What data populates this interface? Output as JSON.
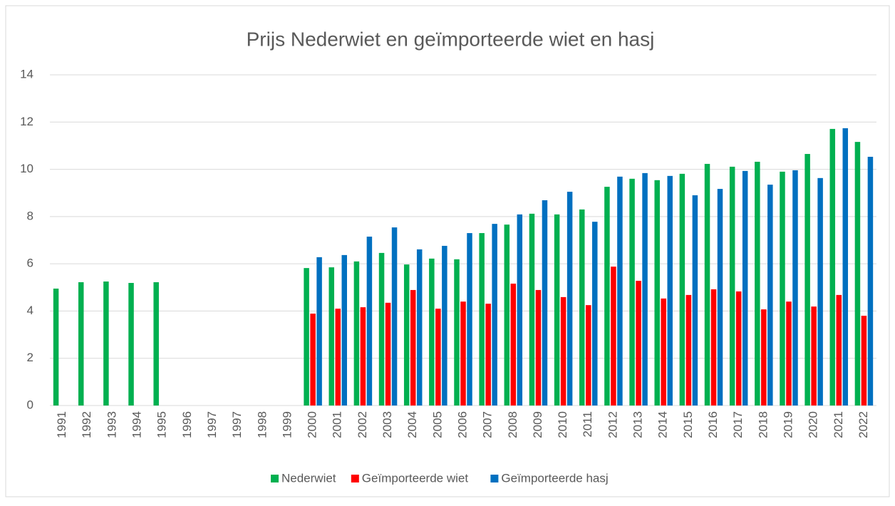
{
  "chart_data": {
    "type": "bar",
    "title": "Prijs Nederwiet en geïmporteerde wiet en hasj",
    "categories": [
      "1991",
      "1992",
      "1993",
      "1994",
      "1995",
      "1996",
      "1997",
      "1997",
      "1998",
      "1999",
      "2000",
      "2001",
      "2002",
      "2003",
      "2004",
      "2005",
      "2006",
      "2007",
      "2008",
      "2009",
      "2010",
      "2011",
      "2012",
      "2013",
      "2014",
      "2015",
      "2016",
      "2017",
      "2018",
      "2019",
      "2020",
      "2021",
      "2022"
    ],
    "series": [
      {
        "name": "Nederwiet",
        "color": "#00b050",
        "values": [
          4.95,
          5.22,
          5.25,
          5.19,
          5.22,
          null,
          null,
          null,
          null,
          null,
          5.82,
          5.85,
          6.1,
          6.46,
          5.97,
          6.22,
          6.19,
          7.3,
          7.66,
          8.12,
          8.09,
          8.3,
          9.26,
          9.6,
          9.54,
          9.81,
          10.23,
          10.11,
          10.32,
          9.9,
          10.65,
          11.71,
          11.16
        ]
      },
      {
        "name": "Geïmporteerde wiet",
        "color": "#ff0000",
        "values": [
          null,
          null,
          null,
          null,
          null,
          null,
          null,
          null,
          null,
          null,
          3.89,
          4.1,
          4.16,
          4.35,
          4.89,
          4.1,
          4.4,
          4.31,
          5.16,
          4.89,
          4.59,
          4.25,
          5.88,
          5.28,
          4.53,
          4.68,
          4.92,
          4.83,
          4.07,
          4.4,
          4.19,
          4.68,
          3.8
        ]
      },
      {
        "name": "Geïmporteerde hasj",
        "color": "#0070c0",
        "values": [
          null,
          null,
          null,
          null,
          null,
          null,
          null,
          null,
          null,
          null,
          6.28,
          6.37,
          7.15,
          7.54,
          6.61,
          6.76,
          7.3,
          7.69,
          8.09,
          8.69,
          9.05,
          7.78,
          9.69,
          9.84,
          9.72,
          8.9,
          9.17,
          9.93,
          9.35,
          9.96,
          9.63,
          11.74,
          10.53
        ]
      }
    ],
    "ylim": [
      0,
      14
    ],
    "yticks": [
      0,
      2,
      4,
      6,
      8,
      10,
      12,
      14
    ],
    "grid": true,
    "legend": "bottom"
  }
}
